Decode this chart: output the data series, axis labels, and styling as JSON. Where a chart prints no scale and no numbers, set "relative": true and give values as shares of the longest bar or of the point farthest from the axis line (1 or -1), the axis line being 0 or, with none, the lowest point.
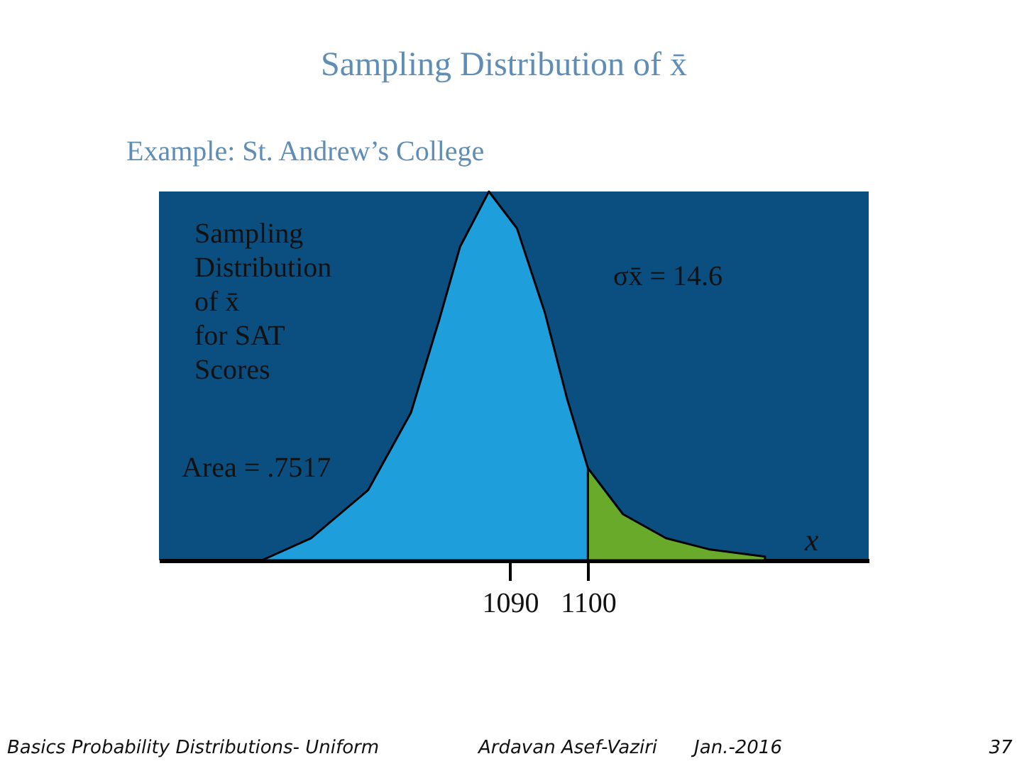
{
  "chart_data": {
    "type": "area",
    "title": "Sampling Distribution of x̄",
    "subtitle": "Example: St. Andrew’s College",
    "xlabel": "x",
    "relative": true,
    "xlim": [
      1045,
      1136
    ],
    "xticks": [
      1090,
      1100
    ],
    "series": [
      {
        "color": "#1e9fdc",
        "x": [
          1058.2,
          1064.5,
          1071.8,
          1077.3,
          1080.9,
          1083.6,
          1087.3,
          1090.9,
          1094.5,
          1097.3,
          1100
        ],
        "values": [
          0,
          0.06,
          0.19,
          0.4,
          0.65,
          0.85,
          1,
          0.9,
          0.67,
          0.44,
          0.25
        ]
      },
      {
        "color": "#6aaa2a",
        "x": [
          1100,
          1104.5,
          1110,
          1115.5,
          1122.7
        ],
        "values": [
          0.25,
          0.125,
          0.06,
          0.03,
          0.01
        ]
      }
    ],
    "annotations": [
      "Sampling\nDistribution\nof x̄\nfor SAT\nScores",
      "σx̄ = 14.6",
      "Area = .7517",
      "Basics Probability Distributions- Uniform",
      "Ardavan Asef-Vaziri",
      "Jan.-2016",
      "37"
    ]
  }
}
